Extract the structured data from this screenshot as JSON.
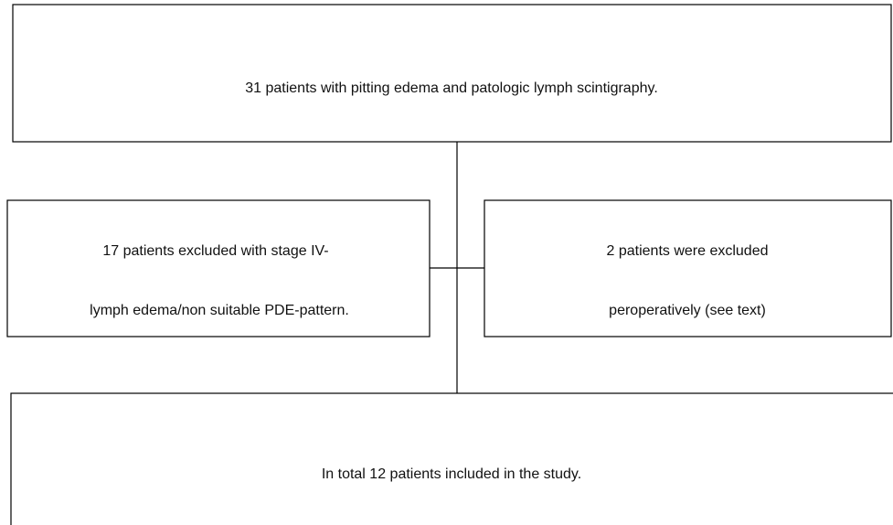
{
  "nodes": [
    {
      "lines": [
        "31 patients with pitting edema and patologic lymph scintigraphy."
      ]
    },
    {
      "lines": [
        "17 patients excluded with stage IV-",
        "lymph edema/non suitable PDE-pattern."
      ]
    },
    {
      "lines": [
        "2 patients were excluded",
        "peroperatively (see text)"
      ]
    },
    {
      "lines": [
        "In total 12 patients included  in the study."
      ]
    }
  ]
}
